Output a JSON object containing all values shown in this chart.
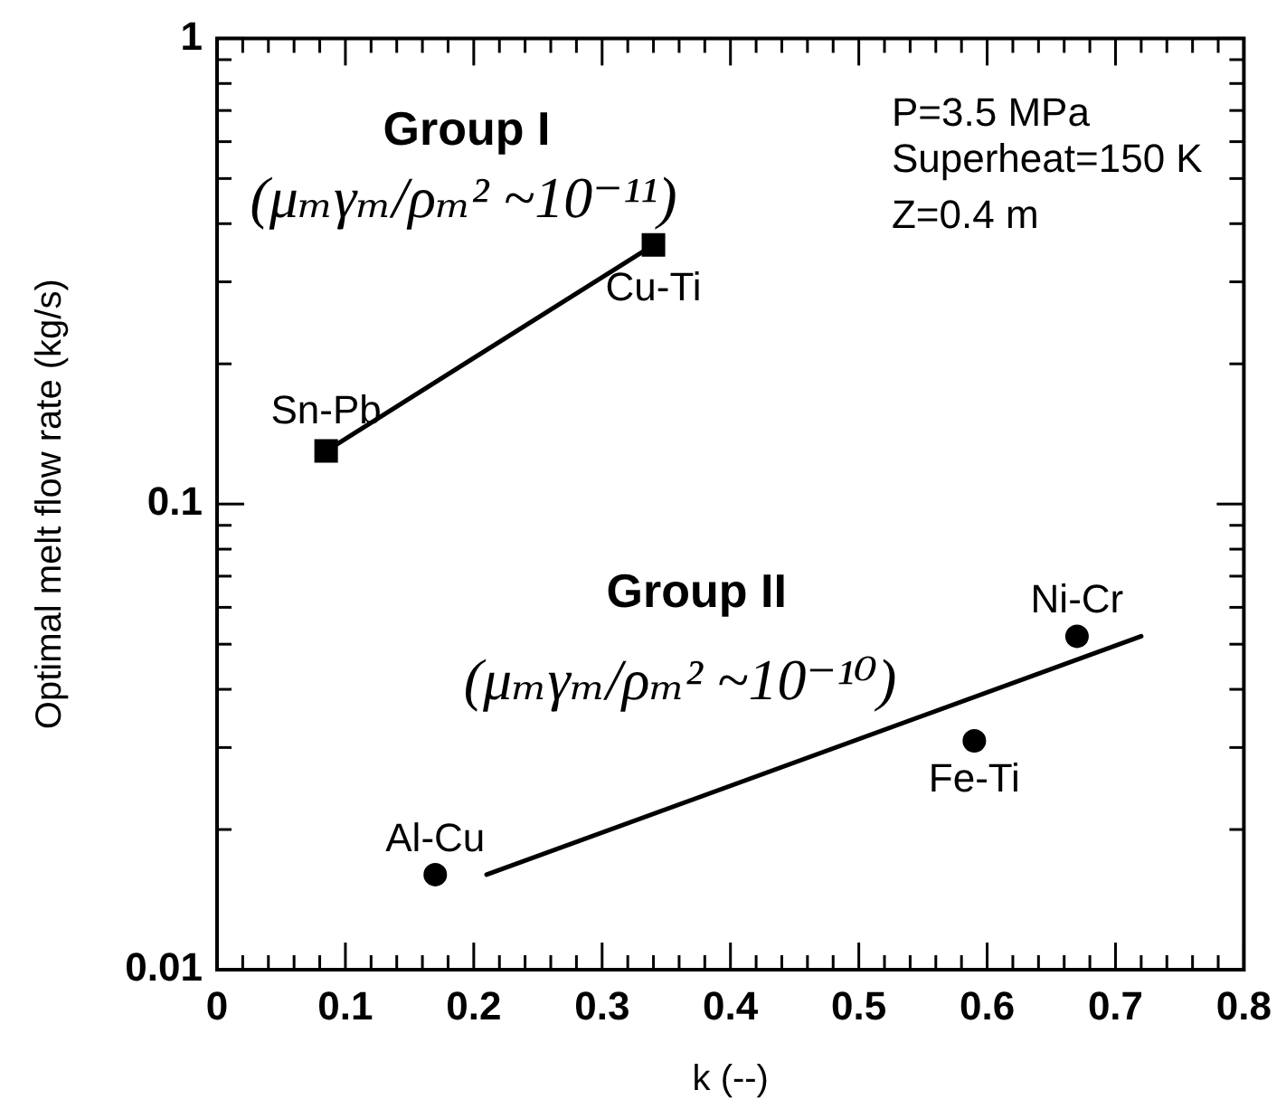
{
  "chart_data": {
    "type": "scatter",
    "xlabel": "k (--)",
    "ylabel": "Optimal melt flow rate (kg/s)",
    "xlim": [
      0,
      0.8
    ],
    "xticks": [
      0,
      {
        "value": 0.02,
        "label": null
      },
      {
        "value": 0.04,
        "label": null
      },
      {
        "value": 0.06,
        "label": null
      },
      {
        "value": 0.08,
        "label": null
      },
      0.1,
      {
        "value": 0.12,
        "label": null
      },
      {
        "value": 0.14,
        "label": null
      },
      {
        "value": 0.16,
        "label": null
      },
      {
        "value": 0.18,
        "label": null
      },
      0.2,
      {
        "value": 0.22,
        "label": null
      },
      {
        "value": 0.24,
        "label": null
      },
      {
        "value": 0.26,
        "label": null
      },
      {
        "value": 0.28,
        "label": null
      },
      0.3,
      {
        "value": 0.32,
        "label": null
      },
      {
        "value": 0.34,
        "label": null
      },
      {
        "value": 0.36,
        "label": null
      },
      {
        "value": 0.38,
        "label": null
      },
      0.4,
      {
        "value": 0.42,
        "label": null
      },
      {
        "value": 0.44,
        "label": null
      },
      {
        "value": 0.46,
        "label": null
      },
      {
        "value": 0.48,
        "label": null
      },
      0.5,
      {
        "value": 0.52,
        "label": null
      },
      {
        "value": 0.54,
        "label": null
      },
      {
        "value": 0.56,
        "label": null
      },
      {
        "value": 0.58,
        "label": null
      },
      0.6,
      {
        "value": 0.62,
        "label": null
      },
      {
        "value": 0.64,
        "label": null
      },
      {
        "value": 0.66,
        "label": null
      },
      {
        "value": 0.68,
        "label": null
      },
      0.7,
      {
        "value": 0.72,
        "label": null
      },
      {
        "value": 0.74,
        "label": null
      },
      {
        "value": 0.76,
        "label": null
      },
      {
        "value": 0.78,
        "label": null
      },
      0.8
    ],
    "ylim": [
      0.01,
      1
    ],
    "yticks": [
      0.01,
      {
        "value": 0.02,
        "label": null
      },
      {
        "value": 0.03,
        "label": null
      },
      {
        "value": 0.04,
        "label": null
      },
      {
        "value": 0.05,
        "label": null
      },
      {
        "value": 0.06,
        "label": null
      },
      {
        "value": 0.07,
        "label": null
      },
      {
        "value": 0.08,
        "label": null
      },
      {
        "value": 0.09,
        "label": null
      },
      0.1,
      {
        "value": 0.2,
        "label": null
      },
      {
        "value": 0.3,
        "label": null
      },
      {
        "value": 0.4,
        "label": null
      },
      {
        "value": 0.5,
        "label": null
      },
      {
        "value": 0.6,
        "label": null
      },
      {
        "value": 0.7,
        "label": null
      },
      {
        "value": 0.8,
        "label": null
      },
      {
        "value": 0.9,
        "label": null
      },
      1
    ],
    "log": "y",
    "series": [
      {
        "type": "line",
        "marker": "square",
        "color": "#000000",
        "x": [
          0.085,
          0.34
        ],
        "values": [
          0.13,
          0.36
        ]
      },
      {
        "type": "scatter",
        "marker": "circle",
        "color": "#000000",
        "x": [
          0.17,
          0.59,
          0.67
        ],
        "values": [
          0.016,
          0.031,
          0.052
        ]
      },
      {
        "type": "line",
        "marker": "none",
        "color": "#000000",
        "x": [
          0.21,
          0.72
        ],
        "values": [
          0.016,
          0.052
        ]
      }
    ],
    "annotations": [
      "Group I",
      "(μₘγₘ/ρₘ² ~10⁻¹¹)",
      "Group II",
      "(μₘγₘ/ρₘ² ~10⁻¹⁰)",
      {
        "text": "Sn-Pb",
        "x": 0.085,
        "y": 0.13
      },
      {
        "text": "Cu-Ti",
        "x": 0.34,
        "y": 0.36
      },
      {
        "text": "Al-Cu",
        "x": 0.17,
        "y": 0.016
      },
      {
        "text": "Fe-Ti",
        "x": 0.59,
        "y": 0.031
      },
      {
        "text": "Ni-Cr",
        "x": 0.67,
        "y": 0.052
      },
      "P=3.5 MPa",
      "Superheat=150 K",
      "Z=0.4 m"
    ]
  }
}
